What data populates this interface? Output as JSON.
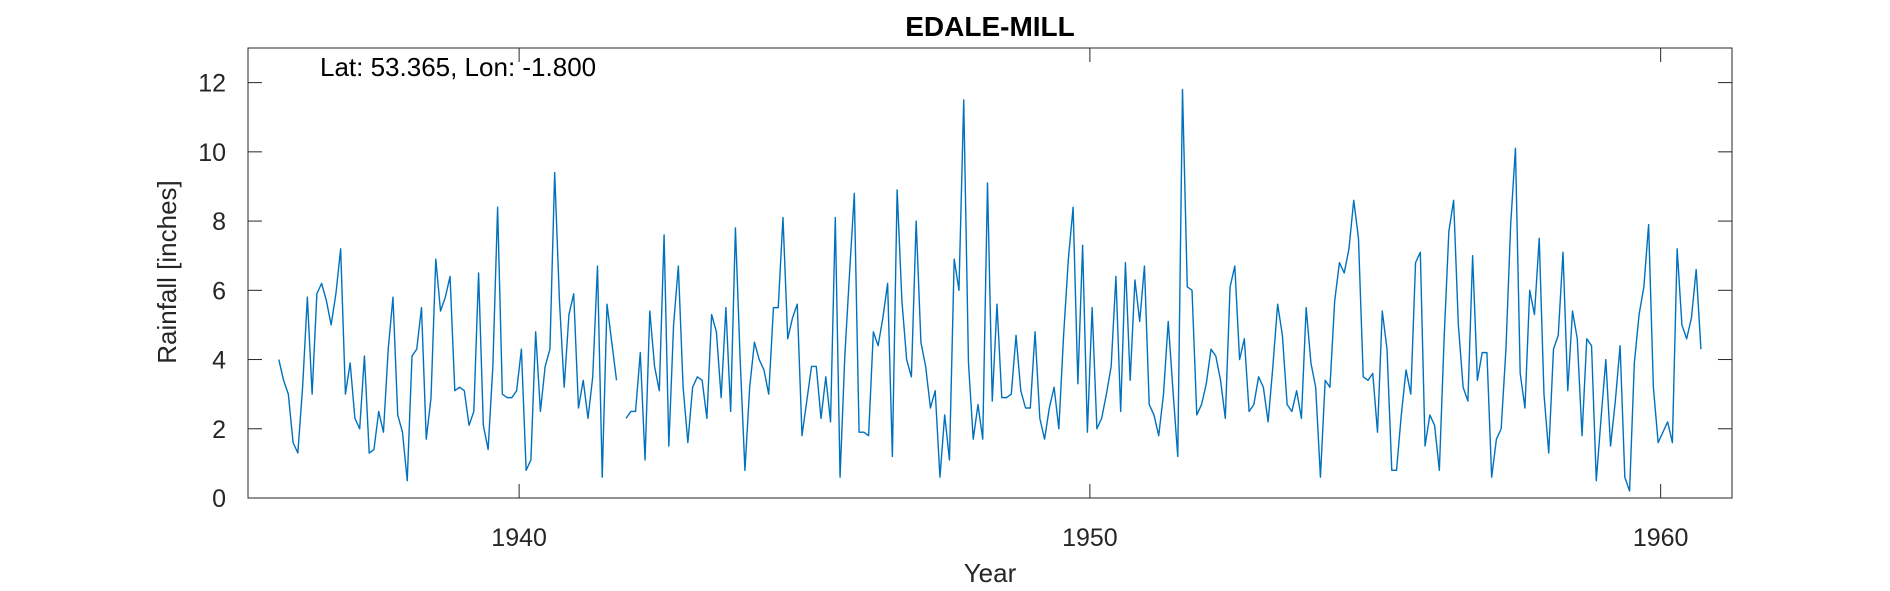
{
  "chart_data": {
    "type": "line",
    "title": "EDALE-MILL",
    "annotation": "Lat: 53.365, Lon: -1.800",
    "xlabel": "Year",
    "ylabel": "Rainfall [inches]",
    "xlim": [
      1935.25,
      1961.25
    ],
    "ylim": [
      0,
      13
    ],
    "xticks": [
      1940,
      1950,
      1960
    ],
    "yticks": [
      0,
      2,
      4,
      6,
      8,
      10,
      12
    ],
    "box": true,
    "grid": false,
    "line_color": "#0072BD",
    "series": [
      {
        "x_start": 1935.79,
        "x_step": 0.08333,
        "values": [
          4.0,
          3.4,
          3.0,
          1.6,
          1.3,
          3.2,
          5.8,
          3.0,
          5.9,
          6.2,
          5.7,
          5.0,
          5.9,
          7.2,
          3.0,
          3.9,
          2.3,
          2.0,
          4.1,
          1.3,
          1.4,
          2.5,
          1.9,
          4.3,
          5.8,
          2.4,
          1.9,
          0.5,
          4.1,
          4.3,
          5.5,
          1.7,
          2.9,
          6.9,
          5.4,
          5.8,
          6.4,
          3.1,
          3.2,
          3.1,
          2.1,
          2.5,
          6.5,
          2.1,
          1.4,
          3.8,
          8.4,
          3.0,
          2.9,
          2.9,
          3.1,
          4.3,
          0.8,
          1.1,
          4.8,
          2.5,
          3.8,
          4.3,
          9.4,
          5.7,
          3.2,
          5.3,
          5.9,
          2.6,
          3.4,
          2.3,
          3.5,
          6.7,
          0.6,
          5.6,
          4.5,
          3.4,
          null,
          2.3,
          2.5,
          2.5,
          4.2,
          1.1,
          5.4,
          3.8,
          3.1,
          7.6,
          1.5,
          5.0,
          6.7,
          3.2,
          1.6,
          3.2,
          3.5,
          3.4,
          2.3,
          5.3,
          4.8,
          2.9,
          5.5,
          2.5,
          7.8,
          4.0,
          0.8,
          3.2,
          4.5,
          4.0,
          3.7,
          3.0,
          5.5,
          5.5,
          8.1,
          4.6,
          5.2,
          5.6,
          1.8,
          2.8,
          3.8,
          3.8,
          2.3,
          3.5,
          2.2,
          8.1,
          0.6,
          4.1,
          6.5,
          8.8,
          1.9,
          1.9,
          1.8,
          4.8,
          4.4,
          5.2,
          6.2,
          1.2,
          8.9,
          5.7,
          4.0,
          3.5,
          8.0,
          4.5,
          3.8,
          2.6,
          3.1,
          0.6,
          2.4,
          1.1,
          6.9,
          6.0,
          11.5,
          3.9,
          1.7,
          2.7,
          1.7,
          9.1,
          2.8,
          5.6,
          2.9,
          2.9,
          3.0,
          4.7,
          3.1,
          2.6,
          2.6,
          4.8,
          2.3,
          1.7,
          2.6,
          3.2,
          2.0,
          4.7,
          6.9,
          8.4,
          3.3,
          7.3,
          1.9,
          5.5,
          2.0,
          2.3,
          3.0,
          3.8,
          6.4,
          2.5,
          6.8,
          3.4,
          6.3,
          5.1,
          6.7,
          2.7,
          2.4,
          1.8,
          3.0,
          5.1,
          3.1,
          1.2,
          11.8,
          6.1,
          6.0,
          2.4,
          2.7,
          3.3,
          4.3,
          4.1,
          3.4,
          2.3,
          6.1,
          6.7,
          4.0,
          4.6,
          2.5,
          2.7,
          3.5,
          3.2,
          2.2,
          3.8,
          5.6,
          4.7,
          2.7,
          2.5,
          3.1,
          2.3,
          5.5,
          3.9,
          3.2,
          0.6,
          3.4,
          3.2,
          5.7,
          6.8,
          6.5,
          7.2,
          8.6,
          7.5,
          3.5,
          3.4,
          3.6,
          1.9,
          5.4,
          4.3,
          0.8,
          0.8,
          2.4,
          3.7,
          3.0,
          6.8,
          7.1,
          1.5,
          2.4,
          2.1,
          0.8,
          4.6,
          7.7,
          8.6,
          5.0,
          3.2,
          2.8,
          7.0,
          3.4,
          4.2,
          4.2,
          0.6,
          1.7,
          2.0,
          4.3,
          7.9,
          10.1,
          3.6,
          2.6,
          6.0,
          5.3,
          7.5,
          3.0,
          1.3,
          4.3,
          4.7,
          7.1,
          3.1,
          5.4,
          4.6,
          1.8,
          4.6,
          4.4,
          0.5,
          2.3,
          4.0,
          1.5,
          2.8,
          4.4,
          0.6,
          0.2,
          3.9,
          5.3,
          6.1,
          7.9,
          3.2,
          1.6,
          1.9,
          2.2,
          1.6,
          7.2,
          5.0,
          4.6,
          5.2,
          6.6,
          4.3
        ]
      }
    ]
  }
}
